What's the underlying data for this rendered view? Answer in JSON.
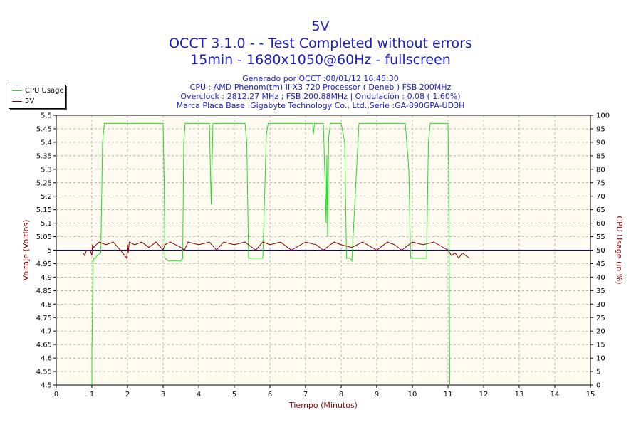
{
  "header": {
    "title": "5V",
    "line2": "OCCT 3.1.0 -  - Test Completed without errors",
    "line3": "15min - 1680x1050@60Hz - fullscreen",
    "info": [
      "Generado por OCCT :08/01/12 16:45:30",
      "CPU : AMD Phenom(tm) II X3 720 Processor ( Deneb ) FSB 200MHz",
      "Overclock : 2812.27 MHz ; FSB 200.88MHz | Ondulación : 0.08 ( 1.60%)",
      "Marca Placa Base :Gigabyte Technology Co., Ltd.,Serie :GA-890GPA-UD3H"
    ]
  },
  "colors": {
    "title": "#1c1cc8",
    "plot_bg": "#fffbf0",
    "cpu": "#22dd22",
    "volt": "#800000",
    "ref": "#0000cc",
    "grid": "#999999"
  },
  "chart_data": {
    "type": "line",
    "xlabel": "Tiempo (Minutos)",
    "ylabel": "Voltaje (Voltios)",
    "y2label": "CPU Usage (in %)",
    "xlim": [
      0,
      15
    ],
    "ylim": [
      4.5,
      5.5
    ],
    "y2lim": [
      0,
      100
    ],
    "x_ticks": [
      0,
      1,
      2,
      3,
      4,
      5,
      6,
      7,
      8,
      9,
      10,
      11,
      12,
      13,
      14,
      15
    ],
    "y_ticks": [
      4.5,
      4.55,
      4.6,
      4.65,
      4.7,
      4.75,
      4.8,
      4.85,
      4.9,
      4.95,
      5,
      5.05,
      5.1,
      5.15,
      5.2,
      5.25,
      5.3,
      5.35,
      5.4,
      5.45,
      5.5
    ],
    "y_tick_labels": [
      "4.5",
      "4.55",
      "4.6",
      "4.65",
      "4.7",
      "4.75",
      "4.8",
      "4.85",
      "4.9",
      "4.95",
      "5",
      "5.05",
      "5.1",
      "5.15",
      "5.2",
      "5.25",
      "5.3",
      "5.35",
      "5.4",
      "5.45",
      "5.5"
    ],
    "y2_ticks": [
      0,
      5,
      10,
      15,
      20,
      25,
      30,
      35,
      40,
      45,
      50,
      55,
      60,
      65,
      70,
      75,
      80,
      85,
      90,
      95,
      100
    ],
    "grid": true,
    "legend_position": "top-left",
    "reference_line": 5.0,
    "series": [
      {
        "name": "CPU Usage",
        "axis": "right",
        "x": [
          1.0,
          1.0,
          1.02,
          1.03,
          1.05,
          1.1,
          1.15,
          1.25,
          1.3,
          1.35,
          2.0,
          2.9,
          3.0,
          3.03,
          3.05,
          3.15,
          3.5,
          3.55,
          3.58,
          3.62,
          4.3,
          4.32,
          4.35,
          4.38,
          4.4,
          4.5,
          5.3,
          5.35,
          5.4,
          5.8,
          5.85,
          5.9,
          5.95,
          6.5,
          7.2,
          7.22,
          7.25,
          7.5,
          7.55,
          7.58,
          7.6,
          7.62,
          7.65,
          7.7,
          8.0,
          8.1,
          8.15,
          8.2,
          8.25,
          8.3,
          8.5,
          9.0,
          9.8,
          9.9,
          9.95,
          10.4,
          10.45,
          10.5,
          11.0,
          11.02,
          11.05
        ],
        "y": [
          0,
          13,
          28,
          45,
          47,
          47,
          48,
          49,
          90,
          97,
          97,
          97,
          97,
          75,
          47,
          46,
          46,
          47,
          90,
          97,
          97,
          85,
          67,
          85,
          97,
          97,
          97,
          90,
          47,
          47,
          70,
          93,
          97,
          97,
          97,
          93,
          97,
          97,
          75,
          60,
          85,
          55,
          92,
          97,
          97,
          90,
          47,
          47,
          47,
          46,
          97,
          97,
          97,
          80,
          47,
          47,
          90,
          97,
          97,
          80,
          0
        ]
      },
      {
        "name": "5V",
        "axis": "left",
        "x": [
          0.75,
          0.8,
          0.85,
          0.95,
          1.0,
          1.02,
          1.05,
          1.2,
          1.4,
          1.6,
          1.8,
          1.98,
          2.0,
          2.02,
          2.05,
          2.2,
          2.4,
          2.6,
          2.8,
          3.0,
          3.05,
          3.2,
          3.5,
          3.6,
          3.7,
          4.0,
          4.3,
          4.5,
          4.7,
          5.0,
          5.3,
          5.5,
          5.6,
          5.8,
          6.0,
          6.3,
          6.6,
          7.0,
          7.3,
          7.5,
          7.8,
          8.0,
          8.3,
          8.6,
          9.0,
          9.3,
          9.5,
          9.7,
          10.0,
          10.3,
          10.6,
          11.0,
          11.05,
          11.1,
          11.2,
          11.3,
          11.4,
          11.5,
          11.6
        ],
        "y": [
          4.99,
          4.98,
          5.0,
          5.0,
          4.98,
          5.02,
          5.01,
          5.03,
          5.02,
          5.03,
          5.0,
          4.97,
          5.02,
          4.99,
          5.03,
          5.02,
          5.03,
          5.01,
          5.03,
          5.0,
          5.02,
          5.03,
          5.01,
          5.0,
          5.03,
          5.02,
          5.03,
          5.0,
          5.03,
          5.02,
          5.03,
          5.01,
          5.0,
          5.03,
          5.02,
          5.03,
          5.0,
          5.03,
          5.02,
          5.0,
          5.03,
          5.02,
          5.01,
          5.03,
          5.0,
          5.03,
          5.02,
          5.0,
          5.03,
          5.02,
          5.03,
          5.0,
          4.99,
          4.98,
          4.99,
          4.97,
          4.99,
          4.98,
          4.97
        ]
      }
    ]
  }
}
